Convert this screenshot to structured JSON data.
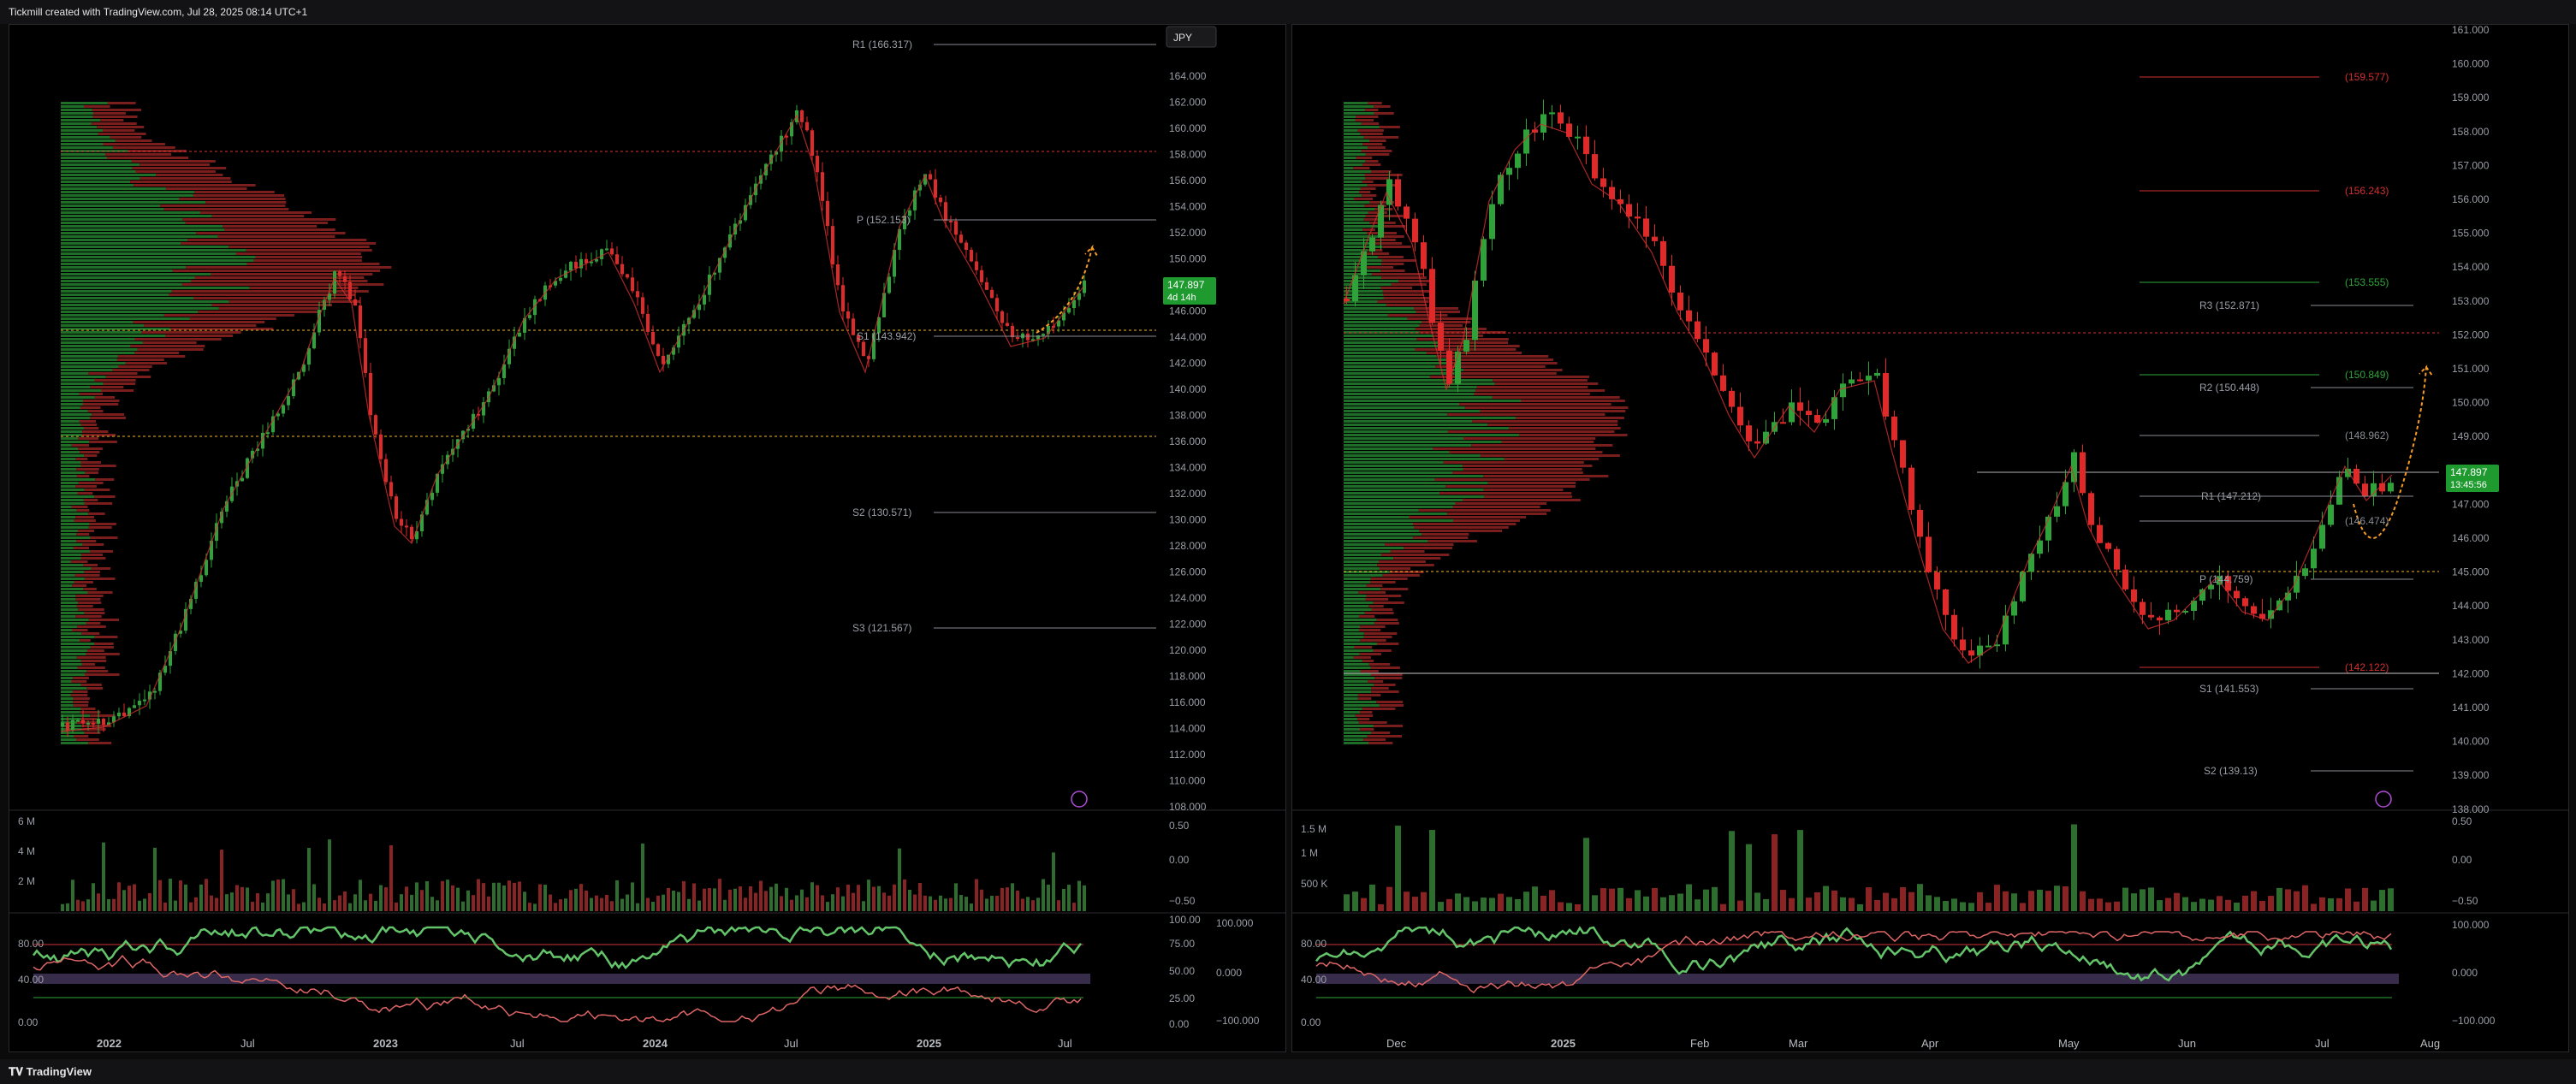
{
  "header": {
    "title": "Tickmill created with TradingView.com, Jul 28, 2025 08:14 UTC+1"
  },
  "footer": {
    "brand": "TradingView"
  },
  "left": {
    "currency_button": "JPY",
    "price_label": "147.897",
    "price_sub": "4d 14h",
    "price_ticks": [
      "164.000",
      "162.000",
      "160.000",
      "158.000",
      "156.000",
      "154.000",
      "152.000",
      "150.000",
      "148.000",
      "146.000",
      "144.000",
      "142.000",
      "140.000",
      "138.000",
      "136.000",
      "134.000",
      "132.000",
      "130.000",
      "128.000",
      "126.000",
      "124.000",
      "122.000",
      "120.000",
      "118.000",
      "116.000",
      "114.000",
      "112.000",
      "110.000",
      "108.000"
    ],
    "pivots": [
      {
        "label": "R1 (166.317)"
      },
      {
        "label": "P (152.153)"
      },
      {
        "label": "S1 (143.942)"
      },
      {
        "label": "S2 (130.571)"
      },
      {
        "label": "S3 (121.567)"
      }
    ],
    "volume_ticks": [
      "6 M",
      "4 M",
      "2 M"
    ],
    "vol_right_ticks": [
      "0.50",
      "0.00",
      "−0.50"
    ],
    "osc_left_ticks": [
      "80.00",
      "40.00",
      "0.00"
    ],
    "osc_right_ticks_a": [
      "100.00",
      "75.00",
      "50.00",
      "25.00",
      "0.00"
    ],
    "osc_right_ticks_b": [
      "100.000",
      "0.000",
      "−100.000"
    ],
    "time_labels": [
      "2022",
      "Jul",
      "2023",
      "Jul",
      "2024",
      "Jul",
      "2025",
      "Jul"
    ]
  },
  "right": {
    "price_label": "147.897",
    "price_sub": "13:45:56",
    "price_ticks": [
      "161.000",
      "160.000",
      "159.000",
      "158.000",
      "157.000",
      "156.000",
      "155.000",
      "154.000",
      "153.000",
      "152.000",
      "151.000",
      "150.000",
      "149.000",
      "148.000",
      "147.000",
      "146.000",
      "145.000",
      "144.000",
      "143.000",
      "142.000",
      "141.000",
      "140.000",
      "139.000",
      "138.000"
    ],
    "pivots": [
      {
        "label": "(159.577)"
      },
      {
        "label": "(156.243)"
      },
      {
        "label": "(153.555)"
      },
      {
        "label": "R3 (152.871)"
      },
      {
        "label": "(150.849)"
      },
      {
        "label": "R2 (150.448)"
      },
      {
        "label": "(148.962)"
      },
      {
        "label": "R1 (147.212)"
      },
      {
        "label": "(146.474)"
      },
      {
        "label": "P (144.759)"
      },
      {
        "label": "(142.122)"
      },
      {
        "label": "S1 (141.553)"
      },
      {
        "label": "S2 (139.13)"
      }
    ],
    "volume_ticks": [
      "1.5 M",
      "1 M",
      "500 K"
    ],
    "vol_right_ticks": [
      "0.50",
      "0.00",
      "−0.50"
    ],
    "osc_left_ticks": [
      "80.00",
      "40.00",
      "0.00"
    ],
    "osc_right_ticks": [
      "100.000",
      "0.000",
      "−100.000"
    ],
    "time_labels": [
      "Dec",
      "2025",
      "Feb",
      "Mar",
      "Apr",
      "May",
      "Jun",
      "Jul",
      "Aug"
    ]
  },
  "colors": {
    "bull": "#2fa33a",
    "bear": "#e02a2a",
    "orange": "#f59a23",
    "price_badge": "#1f9a2f"
  }
}
